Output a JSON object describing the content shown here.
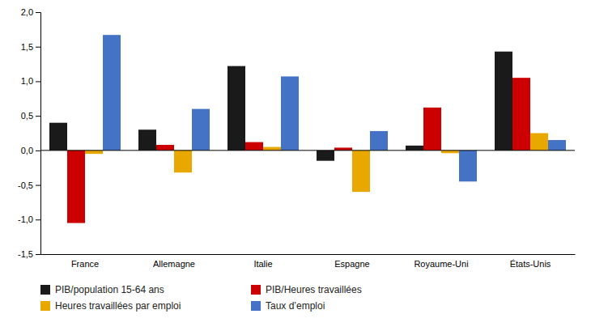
{
  "chart_data": {
    "type": "bar",
    "categories": [
      "France",
      "Allemagne",
      "Italie",
      "Espagne",
      "Royaume-Uni",
      "États-Unis"
    ],
    "series": [
      {
        "name": "PIB/population 15-64 ans",
        "color": "#1a1a1a",
        "values": [
          0.4,
          0.3,
          1.22,
          -0.15,
          0.07,
          1.43
        ]
      },
      {
        "name": "PIB/Heures travaillées",
        "color": "#cc0000",
        "values": [
          -1.05,
          0.08,
          0.12,
          0.04,
          0.62,
          1.05
        ]
      },
      {
        "name": "Heures travaillées par emploi",
        "color": "#e8a800",
        "values": [
          -0.05,
          -0.32,
          0.05,
          -0.6,
          -0.04,
          0.25
        ]
      },
      {
        "name": "Taux d’emploi",
        "color": "#4472c4",
        "values": [
          1.67,
          0.6,
          1.07,
          0.28,
          -0.45,
          0.15
        ]
      }
    ],
    "ylim": [
      -1.5,
      2.0
    ],
    "yticks": [
      {
        "value": -1.5,
        "label": "-1,5"
      },
      {
        "value": -1.0,
        "label": "-1,0"
      },
      {
        "value": -0.5,
        "label": "-0,5"
      },
      {
        "value": 0.0,
        "label": "0,0"
      },
      {
        "value": 0.5,
        "label": "0,5"
      },
      {
        "value": 1.0,
        "label": "1,0"
      },
      {
        "value": 1.5,
        "label": "1,5"
      },
      {
        "value": 2.0,
        "label": "2,0"
      }
    ],
    "grid": false,
    "legend": "bottom"
  }
}
